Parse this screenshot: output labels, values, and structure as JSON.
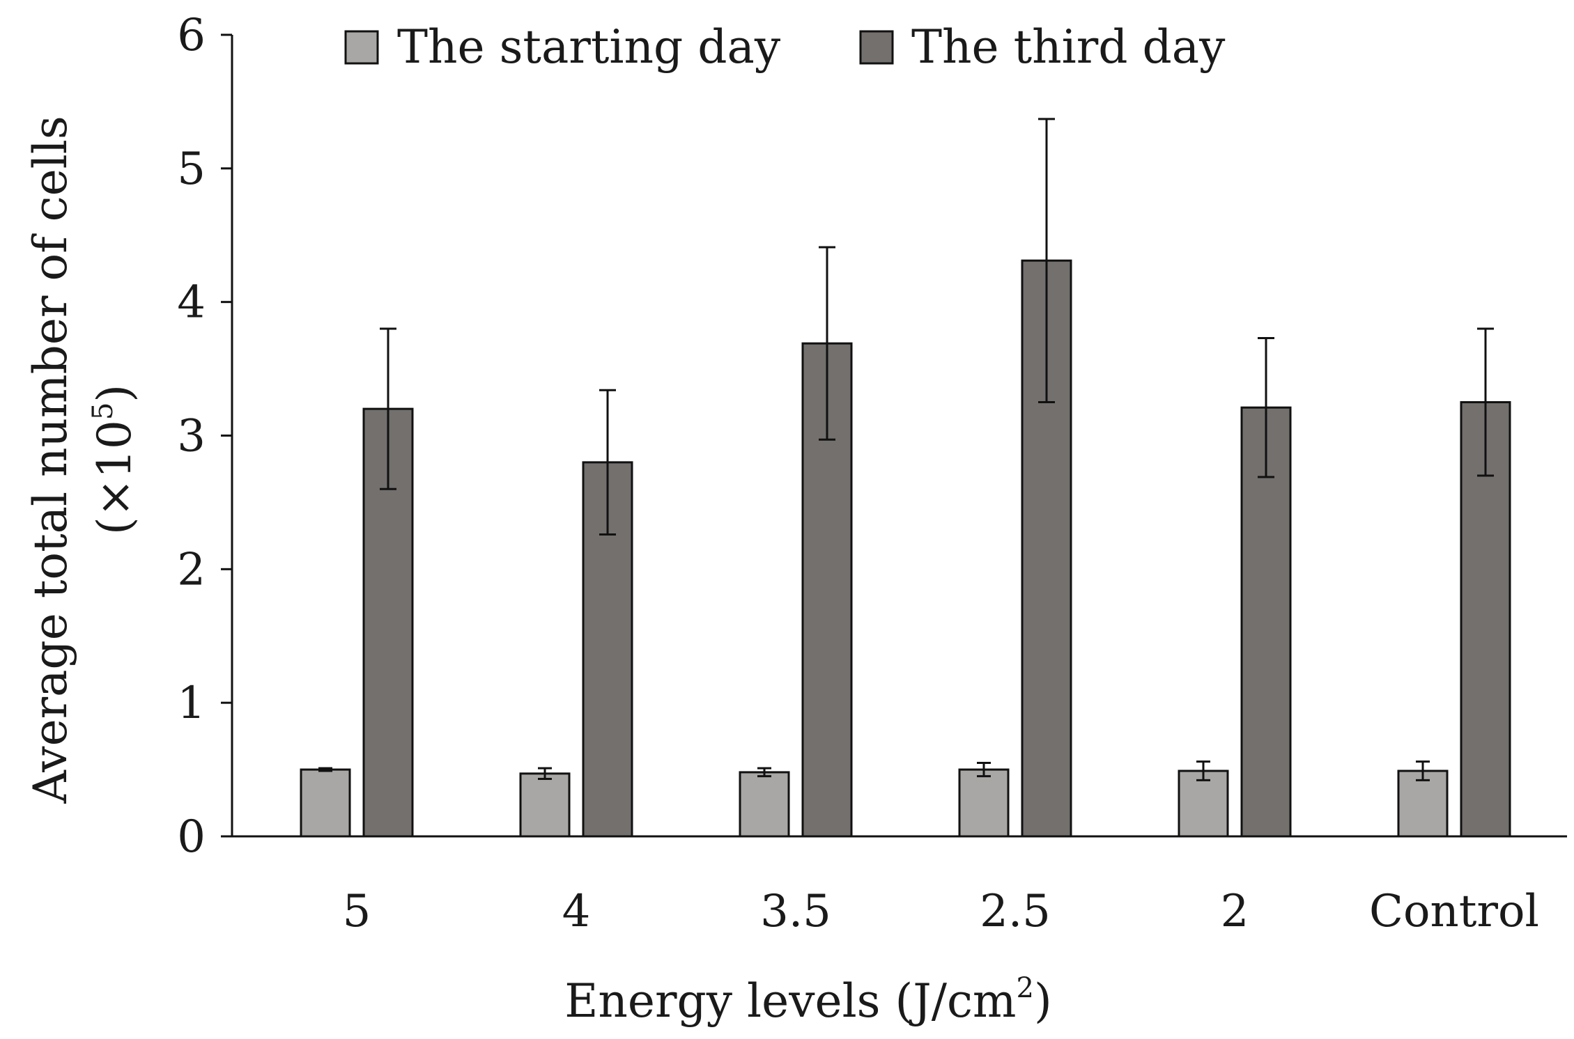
{
  "chart_data": {
    "type": "bar",
    "categories": [
      "5",
      "4",
      "3.5",
      "2.5",
      "2",
      "Control"
    ],
    "series": [
      {
        "name": "The starting day",
        "values": [
          0.5,
          0.47,
          0.48,
          0.5,
          0.49,
          0.49
        ],
        "errors": [
          0.01,
          0.04,
          0.03,
          0.05,
          0.07,
          0.07
        ],
        "color": "#a9a7a5"
      },
      {
        "name": "The third day",
        "values": [
          3.2,
          2.8,
          3.69,
          4.31,
          3.21,
          3.25
        ],
        "errors": [
          0.6,
          0.54,
          0.72,
          1.06,
          0.52,
          0.55
        ],
        "color": "#73706e"
      }
    ],
    "yticks": [
      "0",
      "1",
      "2",
      "3",
      "4",
      "5",
      "6"
    ],
    "ylim": [
      0,
      6
    ],
    "xlabel": {
      "main": "Energy levels (J/cm",
      "sup": "2",
      "end": ")"
    },
    "ylabel": {
      "line1": "Average total number of cells",
      "line2_main": "(×10",
      "line2_sup": "5",
      "line2_end": ")"
    },
    "legend_position": "top",
    "grid": false,
    "errorbars": true
  }
}
